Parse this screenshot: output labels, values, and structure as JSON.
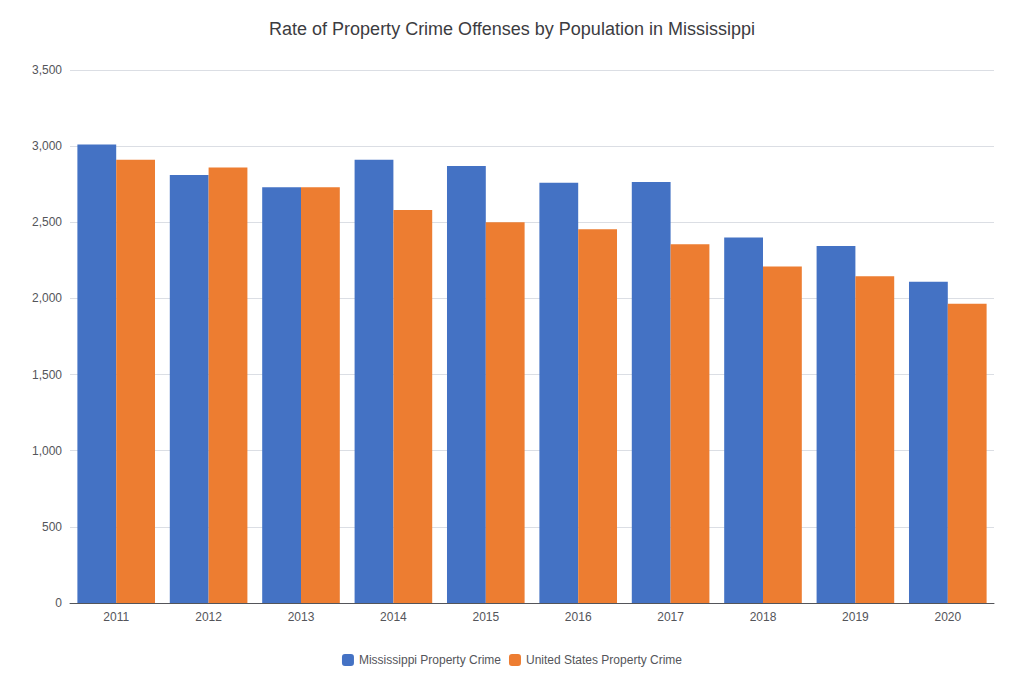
{
  "chart_data": {
    "type": "bar",
    "title": "Rate of Property Crime Offenses by Population in Mississippi",
    "categories": [
      "2011",
      "2012",
      "2013",
      "2014",
      "2015",
      "2016",
      "2017",
      "2018",
      "2019",
      "2020"
    ],
    "series": [
      {
        "name": "Mississippi Property Crime",
        "color": "#4472C4",
        "values": [
          3010,
          2810,
          2730,
          2910,
          2870,
          2760,
          2765,
          2400,
          2345,
          2110
        ]
      },
      {
        "name": "United States Property Crime",
        "color": "#ED7D31",
        "values": [
          2910,
          2860,
          2730,
          2580,
          2500,
          2455,
          2355,
          2210,
          2145,
          1965
        ]
      }
    ],
    "ylim": [
      0,
      3500
    ],
    "yticks": [
      0,
      500,
      1000,
      1500,
      2000,
      2500,
      3000,
      3500
    ],
    "grid": true,
    "legend": "bottom"
  }
}
